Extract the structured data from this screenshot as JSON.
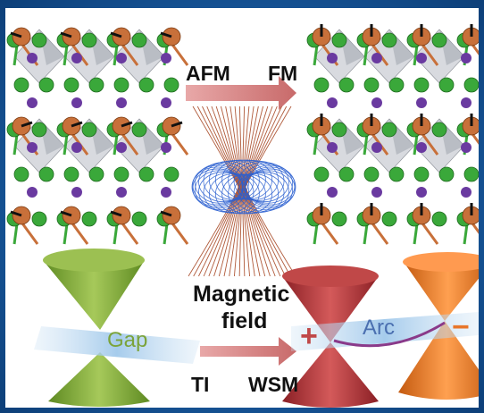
{
  "labels": {
    "afm": "AFM",
    "fm": "FM",
    "magnetic_line1": "Magnetic",
    "magnetic_line2": "field",
    "ti": "TI",
    "wsm": "WSM",
    "gap": "Gap",
    "arc": "Arc",
    "plus": "+",
    "minus": "−"
  },
  "colors": {
    "frame_blue": "#1b5fa6",
    "atom_orange": "#c8703a",
    "atom_green": "#3aa83a",
    "atom_purple": "#6a3aa0",
    "cone_green": "#7ba33a",
    "cone_red": "#b03a3a",
    "cone_orange": "#e8762a",
    "arrow_pink": "#d98a8a",
    "gap_text": "#7ba33a",
    "arc_text": "#4a6fb0",
    "torus_blue": "#2a5fd0",
    "field_lines": "#b05a3a"
  }
}
